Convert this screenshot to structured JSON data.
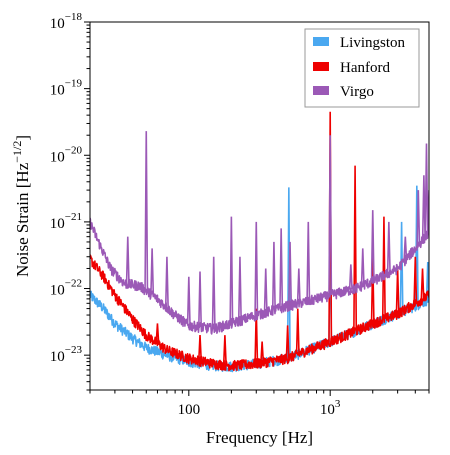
{
  "chart_data": {
    "type": "line",
    "title": "",
    "xlabel": "Frequency [Hz]",
    "ylabel_main": "Noise Strain [Hz",
    "ylabel_exp": "−1/2",
    "ylabel_close": "]",
    "xscale": "log",
    "yscale": "log",
    "xlim": [
      20,
      5000
    ],
    "ylim": [
      3e-24,
      1e-18
    ],
    "x_ticks": [
      {
        "value": 100,
        "label": "100",
        "sci": false
      },
      {
        "value": 1000,
        "base": "10",
        "exp": "3",
        "sci": true
      }
    ],
    "y_ticks": [
      {
        "value": 1e-23,
        "base": "10",
        "exp": "−23"
      },
      {
        "value": 1e-22,
        "base": "10",
        "exp": "−22"
      },
      {
        "value": 1e-21,
        "base": "10",
        "exp": "−21"
      },
      {
        "value": 1e-20,
        "base": "10",
        "exp": "−20"
      },
      {
        "value": 1e-19,
        "base": "10",
        "exp": "−19"
      },
      {
        "value": 1e-18,
        "base": "10",
        "exp": "−18"
      }
    ],
    "grid": false,
    "legend_position": "top-right",
    "series": [
      {
        "name": "Livingston",
        "color": "#4aa8f0",
        "baseline": [
          [
            20,
            8e-23
          ],
          [
            25,
            5e-23
          ],
          [
            30,
            3e-23
          ],
          [
            40,
            1.8e-23
          ],
          [
            50,
            1.3e-23
          ],
          [
            70,
            1e-23
          ],
          [
            100,
            8e-24
          ],
          [
            150,
            7e-24
          ],
          [
            200,
            6.8e-24
          ],
          [
            300,
            7.5e-24
          ],
          [
            500,
            9e-24
          ],
          [
            700,
            1.2e-23
          ],
          [
            1000,
            1.6e-23
          ],
          [
            1500,
            2.3e-23
          ],
          [
            2000,
            3e-23
          ],
          [
            3000,
            4.2e-23
          ],
          [
            4000,
            5.5e-23
          ],
          [
            5000,
            7e-23
          ]
        ],
        "spikes": [
          [
            510,
            3.3e-21
          ],
          [
            1000,
            8e-22
          ],
          [
            3200,
            1e-21
          ],
          [
            4100,
            3.5e-21
          ],
          [
            4900,
            2.5e-22
          ]
        ]
      },
      {
        "name": "Hanford",
        "color": "#ee0000",
        "baseline": [
          [
            20,
            2.8e-22
          ],
          [
            25,
            1.5e-22
          ],
          [
            30,
            8e-23
          ],
          [
            40,
            3.5e-23
          ],
          [
            50,
            2e-23
          ],
          [
            70,
            1.2e-23
          ],
          [
            100,
            9e-24
          ],
          [
            150,
            7.5e-24
          ],
          [
            200,
            7e-24
          ],
          [
            300,
            7.5e-24
          ],
          [
            500,
            9e-24
          ],
          [
            700,
            1.2e-23
          ],
          [
            1000,
            1.6e-23
          ],
          [
            1500,
            2.3e-23
          ],
          [
            2000,
            3e-23
          ],
          [
            3000,
            4.2e-23
          ],
          [
            4000,
            6e-23
          ],
          [
            5000,
            8e-23
          ]
        ],
        "spikes": [
          [
            60,
            3e-23
          ],
          [
            120,
            2e-23
          ],
          [
            180,
            2e-23
          ],
          [
            300,
            5e-23
          ],
          [
            330,
            1.6e-23
          ],
          [
            500,
            2.8e-23
          ],
          [
            590,
            5e-23
          ],
          [
            1000,
            4.5e-20
          ],
          [
            1500,
            7e-21
          ],
          [
            2000,
            3e-22
          ],
          [
            2400,
            1.2e-21
          ],
          [
            3000,
            2e-22
          ],
          [
            4000,
            3e-22
          ],
          [
            4500,
            2e-22
          ]
        ]
      },
      {
        "name": "Virgo",
        "color": "#9b59b6",
        "baseline": [
          [
            20,
            1e-21
          ],
          [
            23,
            5e-22
          ],
          [
            28,
            2e-22
          ],
          [
            35,
            1.2e-22
          ],
          [
            45,
            1.1e-22
          ],
          [
            60,
            7e-23
          ],
          [
            80,
            4e-23
          ],
          [
            100,
            2.8e-23
          ],
          [
            150,
            2.5e-23
          ],
          [
            200,
            3e-23
          ],
          [
            300,
            4e-23
          ],
          [
            500,
            5.5e-23
          ],
          [
            700,
            6.5e-23
          ],
          [
            1000,
            8e-23
          ],
          [
            1500,
            1e-22
          ],
          [
            2000,
            1.3e-22
          ],
          [
            3000,
            2e-22
          ],
          [
            4000,
            4e-22
          ],
          [
            5000,
            7e-22
          ]
        ],
        "spikes": [
          [
            37,
            6e-22
          ],
          [
            50,
            2.3e-20
          ],
          [
            55,
            4e-22
          ],
          [
            70,
            3e-22
          ],
          [
            100,
            1.5e-22
          ],
          [
            120,
            1.8e-22
          ],
          [
            150,
            3e-22
          ],
          [
            200,
            1.2e-21
          ],
          [
            230,
            3e-22
          ],
          [
            300,
            1e-21
          ],
          [
            350,
            2e-22
          ],
          [
            400,
            5e-22
          ],
          [
            450,
            8e-22
          ],
          [
            520,
            5e-22
          ],
          [
            600,
            2e-22
          ],
          [
            700,
            1e-21
          ],
          [
            1000,
            2e-20
          ],
          [
            1400,
            2.3e-22
          ],
          [
            1700,
            4e-22
          ],
          [
            2000,
            1.5e-21
          ],
          [
            2600,
            1e-21
          ],
          [
            3400,
            6e-22
          ],
          [
            4200,
            3e-21
          ],
          [
            4600,
            5e-21
          ],
          [
            4800,
            1.5e-20
          ],
          [
            5000,
            3e-21
          ]
        ]
      }
    ]
  }
}
